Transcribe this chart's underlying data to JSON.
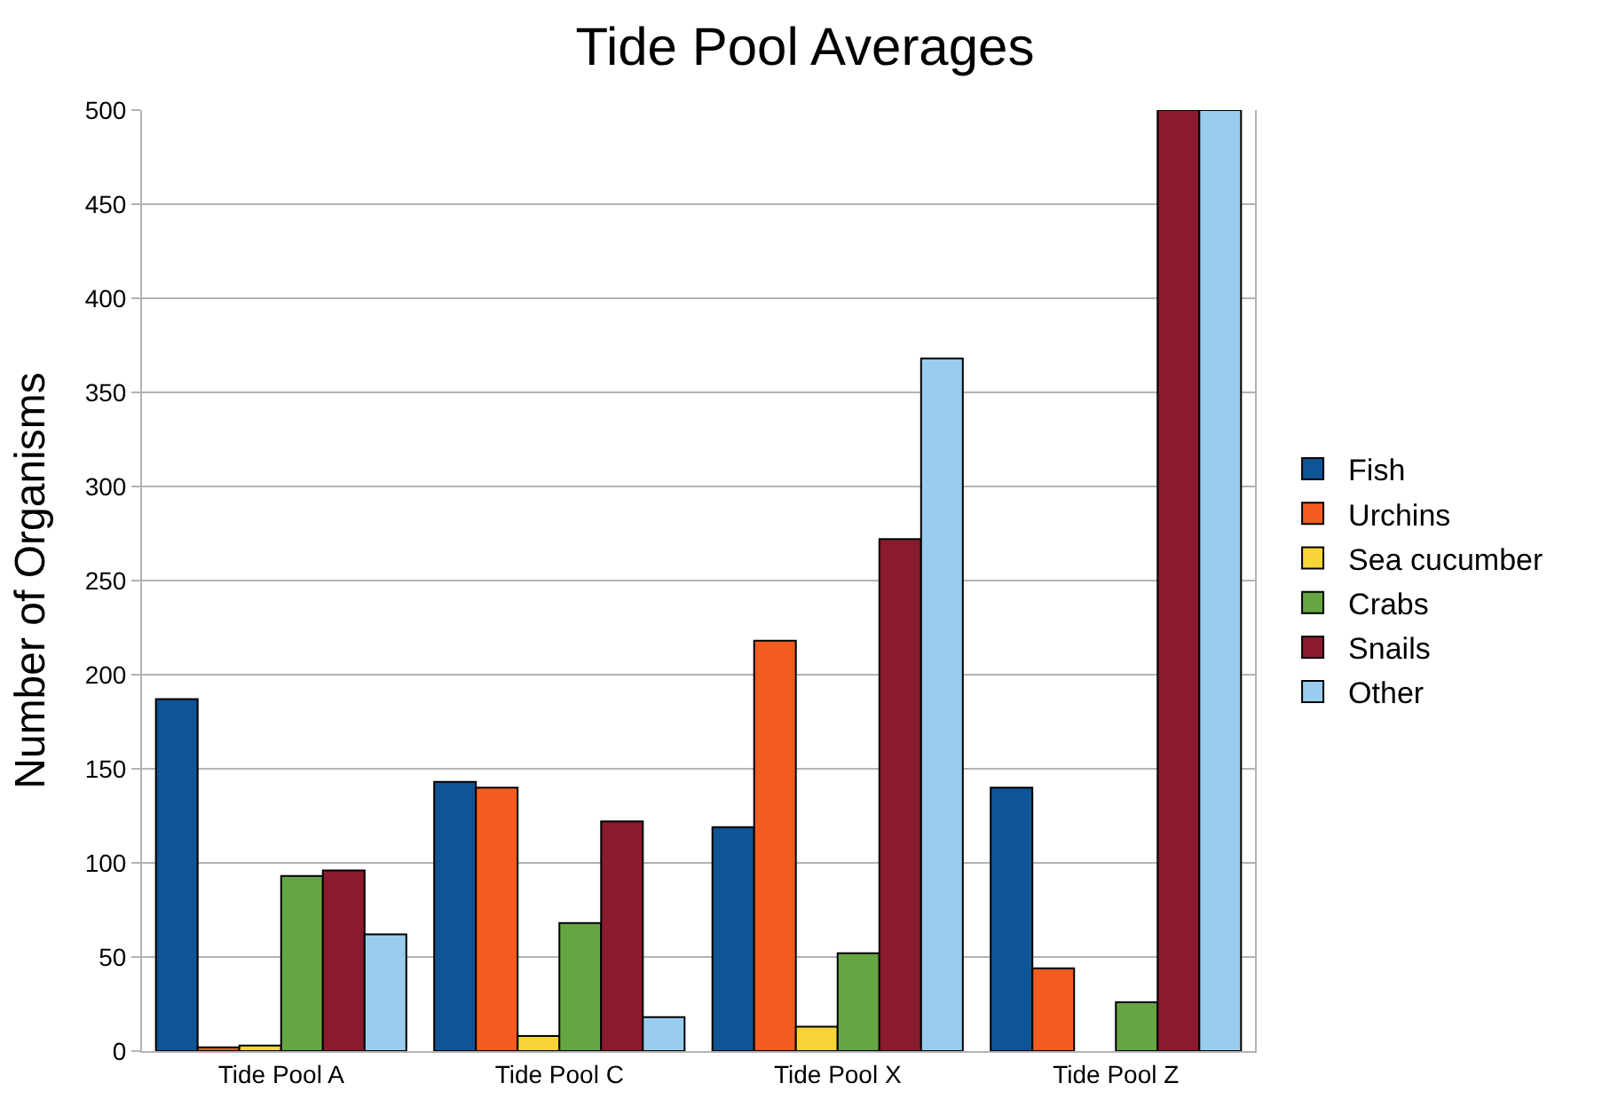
{
  "chart_data": {
    "type": "bar",
    "title": "Tide Pool Averages",
    "ylabel": "Number of Organisms",
    "categories": [
      "Tide Pool A",
      "Tide Pool C",
      "Tide Pool X",
      "Tide Pool Z"
    ],
    "series": [
      {
        "name": "Fish",
        "color": "#0f5494",
        "values": [
          187,
          143,
          119,
          140
        ]
      },
      {
        "name": "Urchins",
        "color": "#f25c21",
        "values": [
          2,
          140,
          218,
          44
        ]
      },
      {
        "name": "Sea cucumber",
        "color": "#f7d43a",
        "values": [
          3,
          8,
          13,
          null
        ]
      },
      {
        "name": "Crabs",
        "color": "#66a543",
        "values": [
          93,
          68,
          52,
          26
        ]
      },
      {
        "name": "Snails",
        "color": "#8a1a2e",
        "values": [
          96,
          122,
          272,
          500
        ]
      },
      {
        "name": "Other",
        "color": "#99cdee",
        "values": [
          62,
          18,
          368,
          500
        ]
      }
    ],
    "ylim": [
      0,
      500
    ],
    "yticks": [
      0,
      50,
      100,
      150,
      200,
      250,
      300,
      350,
      400,
      450,
      500
    ],
    "grid": "y",
    "legend": "right"
  }
}
